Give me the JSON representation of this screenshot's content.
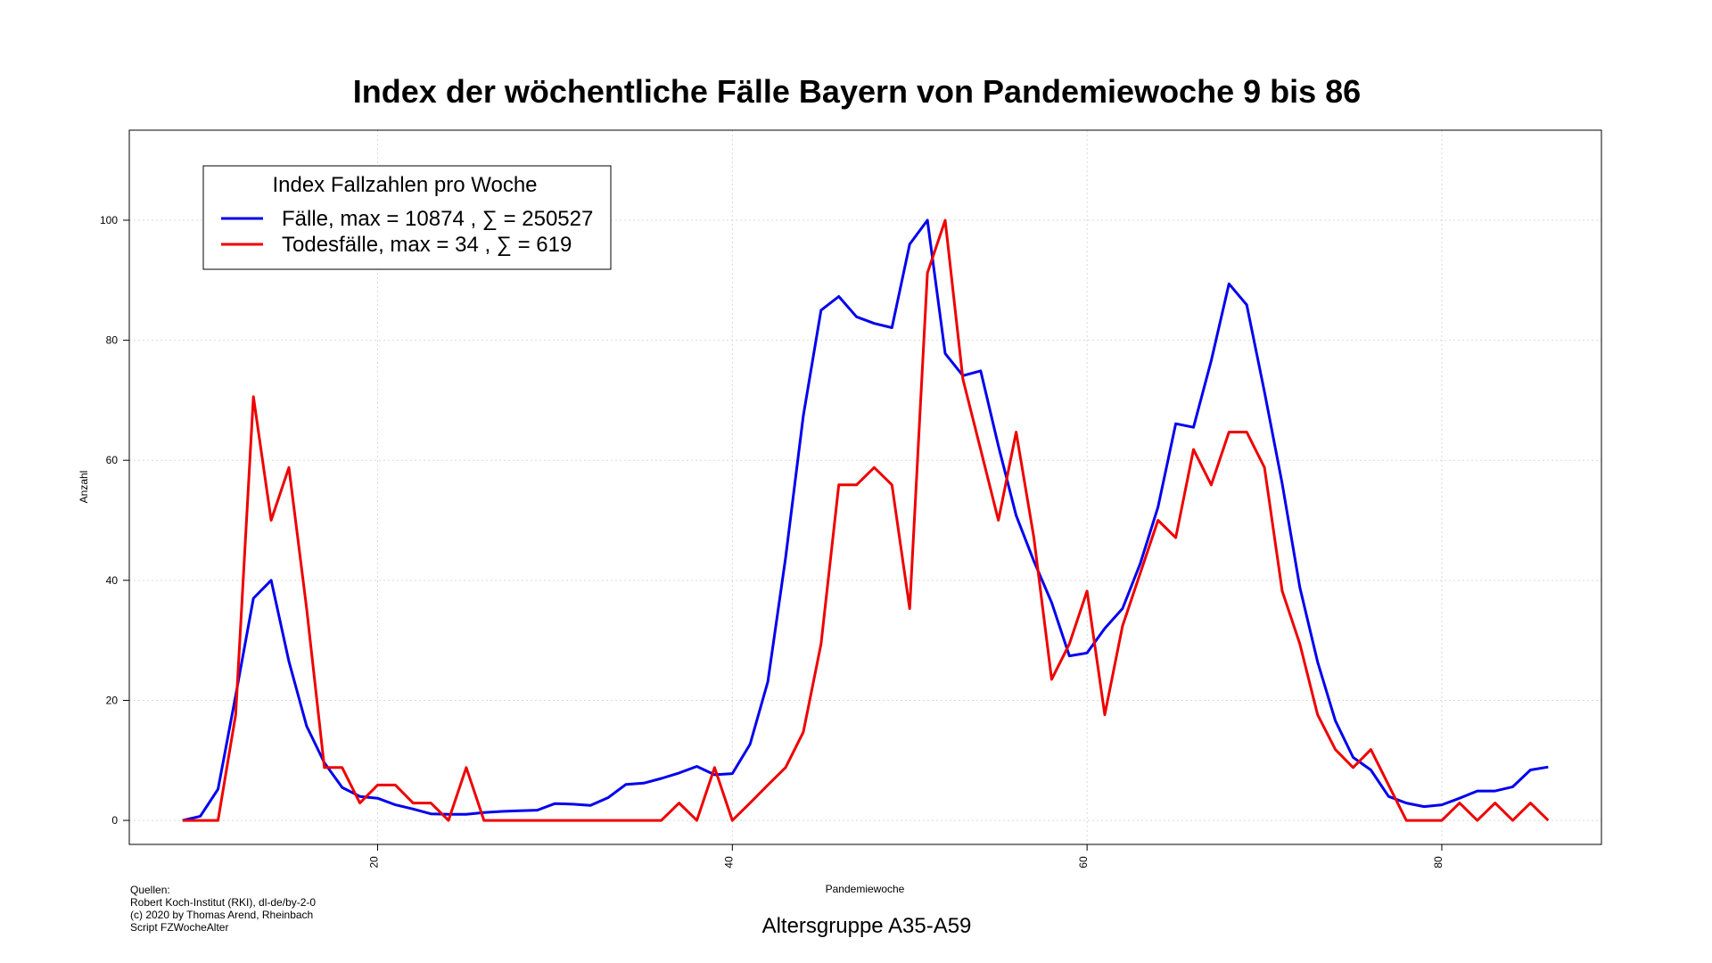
{
  "chart_data": {
    "type": "line",
    "title": "Index der wöchentliche Fälle Bayern von Pandemiewoche 9 bis 86",
    "xlabel": "Pandemiewoche",
    "ylabel": "Anzahl",
    "xlim": [
      6,
      89
    ],
    "ylim": [
      -4,
      115
    ],
    "x_ticks": [
      20,
      40,
      60,
      80
    ],
    "y_ticks": [
      0,
      20,
      40,
      60,
      80,
      100
    ],
    "grid": true,
    "legend_placement": "top-left",
    "legend_title": "Index Fallzahlen pro Woche",
    "x": [
      9,
      10,
      11,
      12,
      13,
      14,
      15,
      16,
      17,
      18,
      19,
      20,
      21,
      22,
      23,
      24,
      25,
      26,
      27,
      28,
      29,
      30,
      31,
      32,
      33,
      34,
      35,
      36,
      37,
      38,
      39,
      40,
      41,
      42,
      43,
      44,
      45,
      46,
      47,
      48,
      49,
      50,
      51,
      52,
      53,
      54,
      55,
      56,
      57,
      58,
      59,
      60,
      61,
      62,
      63,
      64,
      65,
      66,
      67,
      68,
      69,
      70,
      71,
      72,
      73,
      74,
      75,
      76,
      77,
      78,
      79,
      80,
      81,
      82,
      83,
      84,
      85,
      86
    ],
    "series": [
      {
        "name": "Fälle, max = 10874 ,  ∑  = 250527",
        "color": "#0000ee",
        "values": [
          0,
          0.7,
          5.2,
          20.8,
          37,
          40,
          26.5,
          15.7,
          9.6,
          5.5,
          4,
          3.7,
          2.6,
          1.9,
          1.1,
          1,
          1,
          1.3,
          1.5,
          1.6,
          1.7,
          2.8,
          2.7,
          2.5,
          3.8,
          6,
          6.2,
          7,
          7.9,
          9,
          7.6,
          7.8,
          12.7,
          23.1,
          43.7,
          67.4,
          85,
          87.3,
          83.9,
          82.8,
          82.1,
          96,
          100,
          77.8,
          74.1,
          74.9,
          62.4,
          50.8,
          43.2,
          36.3,
          27.4,
          27.9,
          32,
          35.3,
          42.8,
          52.2,
          66.1,
          65.5,
          76.6,
          89.4,
          85.9,
          71.4,
          56.1,
          38.8,
          26.4,
          16.6,
          10.5,
          8.4,
          4,
          2.9,
          2.3,
          2.6,
          3.7,
          4.9,
          4.9,
          5.6,
          8.4,
          8.9
        ]
      },
      {
        "name": "Todesfälle, max = 34 ,  ∑  = 619",
        "color": "#ee0000",
        "values": [
          0,
          0,
          0,
          17.6,
          70.6,
          50,
          58.8,
          35.3,
          8.8,
          8.8,
          2.9,
          5.9,
          5.9,
          2.9,
          2.9,
          0,
          8.8,
          0,
          0,
          0,
          0,
          0,
          0,
          0,
          0,
          0,
          0,
          0,
          2.9,
          0,
          8.8,
          0,
          2.9,
          5.9,
          8.8,
          14.7,
          29.4,
          55.9,
          55.9,
          58.8,
          55.9,
          35.3,
          91.2,
          100,
          73.5,
          61.8,
          50,
          64.7,
          47.1,
          23.5,
          29.4,
          38.2,
          17.6,
          32.4,
          41.2,
          50,
          47.1,
          61.8,
          55.9,
          64.7,
          64.7,
          58.8,
          38.2,
          29.4,
          17.6,
          11.8,
          8.8,
          11.8,
          5.9,
          0,
          0,
          0,
          2.9,
          0,
          2.9,
          0,
          2.9,
          0
        ]
      }
    ]
  },
  "footer": {
    "sources_label": "Quellen:",
    "source_line_1": "Robert Koch-Institut (RKI), dl-de/by-2-0",
    "source_line_2": "(c) 2020 by Thomas Arend, Rheinbach",
    "source_line_3": "Script FZWocheAlter",
    "subtitle": "Altersgruppe A35-A59"
  }
}
